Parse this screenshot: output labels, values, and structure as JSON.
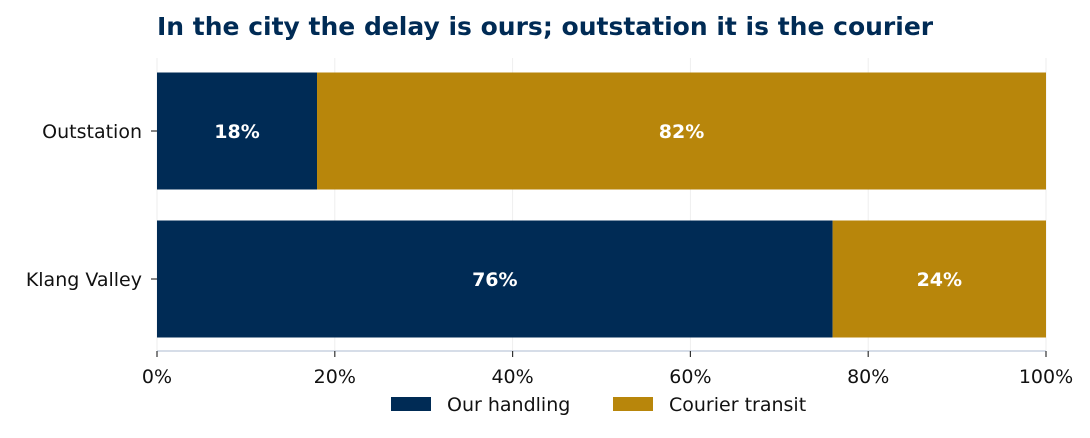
{
  "chart_data": {
    "type": "bar",
    "orientation": "horizontal",
    "stacked": true,
    "title": "In the city the delay is ours; outstation it is the courier",
    "title_color": "#002b55",
    "categories": [
      "Outstation",
      "Klang Valley"
    ],
    "series": [
      {
        "name": "Our handling",
        "color": "#002b55",
        "values": [
          18,
          76
        ],
        "labels": [
          "18%",
          "76%"
        ]
      },
      {
        "name": "Courier transit",
        "color": "#b8860b",
        "values": [
          82,
          24
        ],
        "labels": [
          "82%",
          "24%"
        ]
      }
    ],
    "xlim": [
      0,
      100
    ],
    "xticks": [
      0,
      20,
      40,
      60,
      80,
      100
    ],
    "xtick_labels": [
      "0%",
      "20%",
      "40%",
      "60%",
      "80%",
      "100%"
    ],
    "xlabel": "",
    "ylabel": "",
    "grid": "vertical",
    "legend_position": "bottom-center"
  }
}
